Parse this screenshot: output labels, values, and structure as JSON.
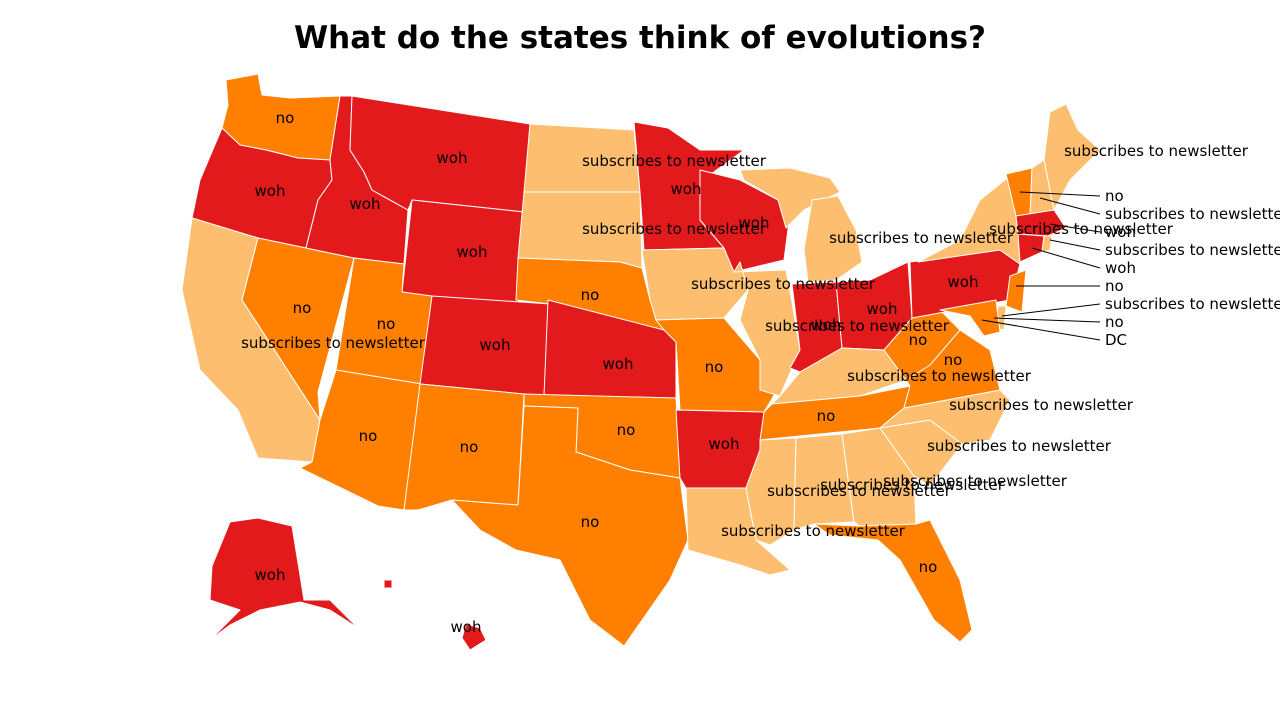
{
  "title": "What do the states think of evolutions?",
  "colors": {
    "woh": "#e31a1c",
    "no": "#ff7f00",
    "subscribes to newsletter": "#fdbf6f"
  },
  "states": [
    {
      "id": "WA",
      "label": "no"
    },
    {
      "id": "OR",
      "label": "woh"
    },
    {
      "id": "CA",
      "label": "subscribes to newsletter"
    },
    {
      "id": "NV",
      "label": "no"
    },
    {
      "id": "ID",
      "label": "woh"
    },
    {
      "id": "MT",
      "label": "woh"
    },
    {
      "id": "WY",
      "label": "woh"
    },
    {
      "id": "UT",
      "label": "no"
    },
    {
      "id": "AZ",
      "label": "no"
    },
    {
      "id": "CO",
      "label": "woh"
    },
    {
      "id": "NM",
      "label": "no"
    },
    {
      "id": "ND",
      "label": "subscribes to newsletter"
    },
    {
      "id": "SD",
      "label": "subscribes to newsletter"
    },
    {
      "id": "NE",
      "label": "no"
    },
    {
      "id": "KS",
      "label": "woh"
    },
    {
      "id": "OK",
      "label": "no"
    },
    {
      "id": "TX",
      "label": "no"
    },
    {
      "id": "MN",
      "label": "woh"
    },
    {
      "id": "IA",
      "label": "subscribes to newsletter"
    },
    {
      "id": "MO",
      "label": "no"
    },
    {
      "id": "AR",
      "label": "woh"
    },
    {
      "id": "LA",
      "label": "subscribes to newsletter"
    },
    {
      "id": "WI",
      "label": "woh"
    },
    {
      "id": "IL",
      "label": "subscribes to newsletter"
    },
    {
      "id": "MI",
      "label": "subscribes to newsletter"
    },
    {
      "id": "IN",
      "label": "woh"
    },
    {
      "id": "OH",
      "label": "woh"
    },
    {
      "id": "KY",
      "label": "subscribes to newsletter"
    },
    {
      "id": "TN",
      "label": "no"
    },
    {
      "id": "MS",
      "label": "subscribes to newsletter"
    },
    {
      "id": "AL",
      "label": "subscribes to newsletter"
    },
    {
      "id": "GA",
      "label": "subscribes to newsletter"
    },
    {
      "id": "FL",
      "label": "no"
    },
    {
      "id": "SC",
      "label": "subscribes to newsletter"
    },
    {
      "id": "NC",
      "label": "subscribes to newsletter"
    },
    {
      "id": "VA",
      "label": "no"
    },
    {
      "id": "WV",
      "label": "no"
    },
    {
      "id": "PA",
      "label": "woh"
    },
    {
      "id": "NY",
      "label": "subscribes to newsletter"
    },
    {
      "id": "ME",
      "label": "subscribes to newsletter"
    },
    {
      "id": "AK",
      "label": "woh"
    },
    {
      "id": "HI",
      "label": "woh"
    },
    {
      "id": "VT",
      "label": "no"
    },
    {
      "id": "NH",
      "label": "subscribes to newsletter"
    },
    {
      "id": "MA",
      "label": "woh"
    },
    {
      "id": "RI",
      "label": "subscribes to newsletter"
    },
    {
      "id": "CT",
      "label": "woh"
    },
    {
      "id": "NJ",
      "label": "no"
    },
    {
      "id": "DE",
      "label": "subscribes to newsletter"
    },
    {
      "id": "MD",
      "label": "no"
    },
    {
      "id": "DC",
      "label": "DC"
    }
  ]
}
